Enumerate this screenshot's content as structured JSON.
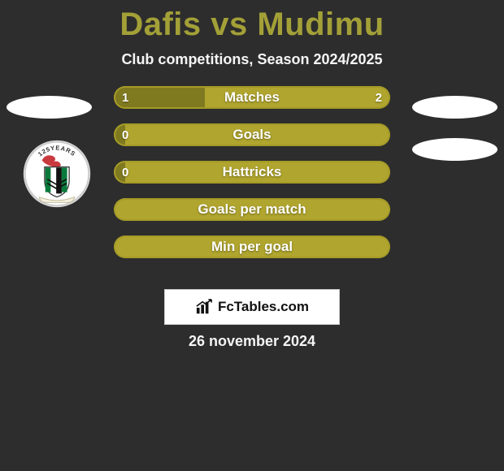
{
  "title": "Dafis vs Mudimu",
  "title_color": "#a3a038",
  "subtitle": "Club competitions, Season 2024/2025",
  "date": "26 november 2024",
  "brand": "FcTables.com",
  "background_color": "#2d2d2d",
  "bar_track_color": "#b0a52e",
  "bar_fill_color": "#7f7a20",
  "bar_border_color": "#a59a27",
  "bars": [
    {
      "label": "Matches",
      "left": "1",
      "right": "2",
      "fill_pct": 33
    },
    {
      "label": "Goals",
      "left": "0",
      "right": "",
      "fill_pct": 4
    },
    {
      "label": "Hattricks",
      "left": "0",
      "right": "",
      "fill_pct": 4
    },
    {
      "label": "Goals per match",
      "left": "",
      "right": "",
      "fill_pct": 0
    },
    {
      "label": "Min per goal",
      "left": "",
      "right": "",
      "fill_pct": 0
    }
  ],
  "side_ellipse_color": "#ffffff",
  "badge": {
    "ring_color": "#e6e6e6",
    "banner_text": "125YEARS",
    "banner_color": "#333333",
    "dragon_color": "#c93a3e",
    "stripe_colors": [
      "#0a7a3c",
      "#ffffff",
      "#111111"
    ],
    "chevron_color": "#111111",
    "scroll_color": "#f3efe0"
  }
}
